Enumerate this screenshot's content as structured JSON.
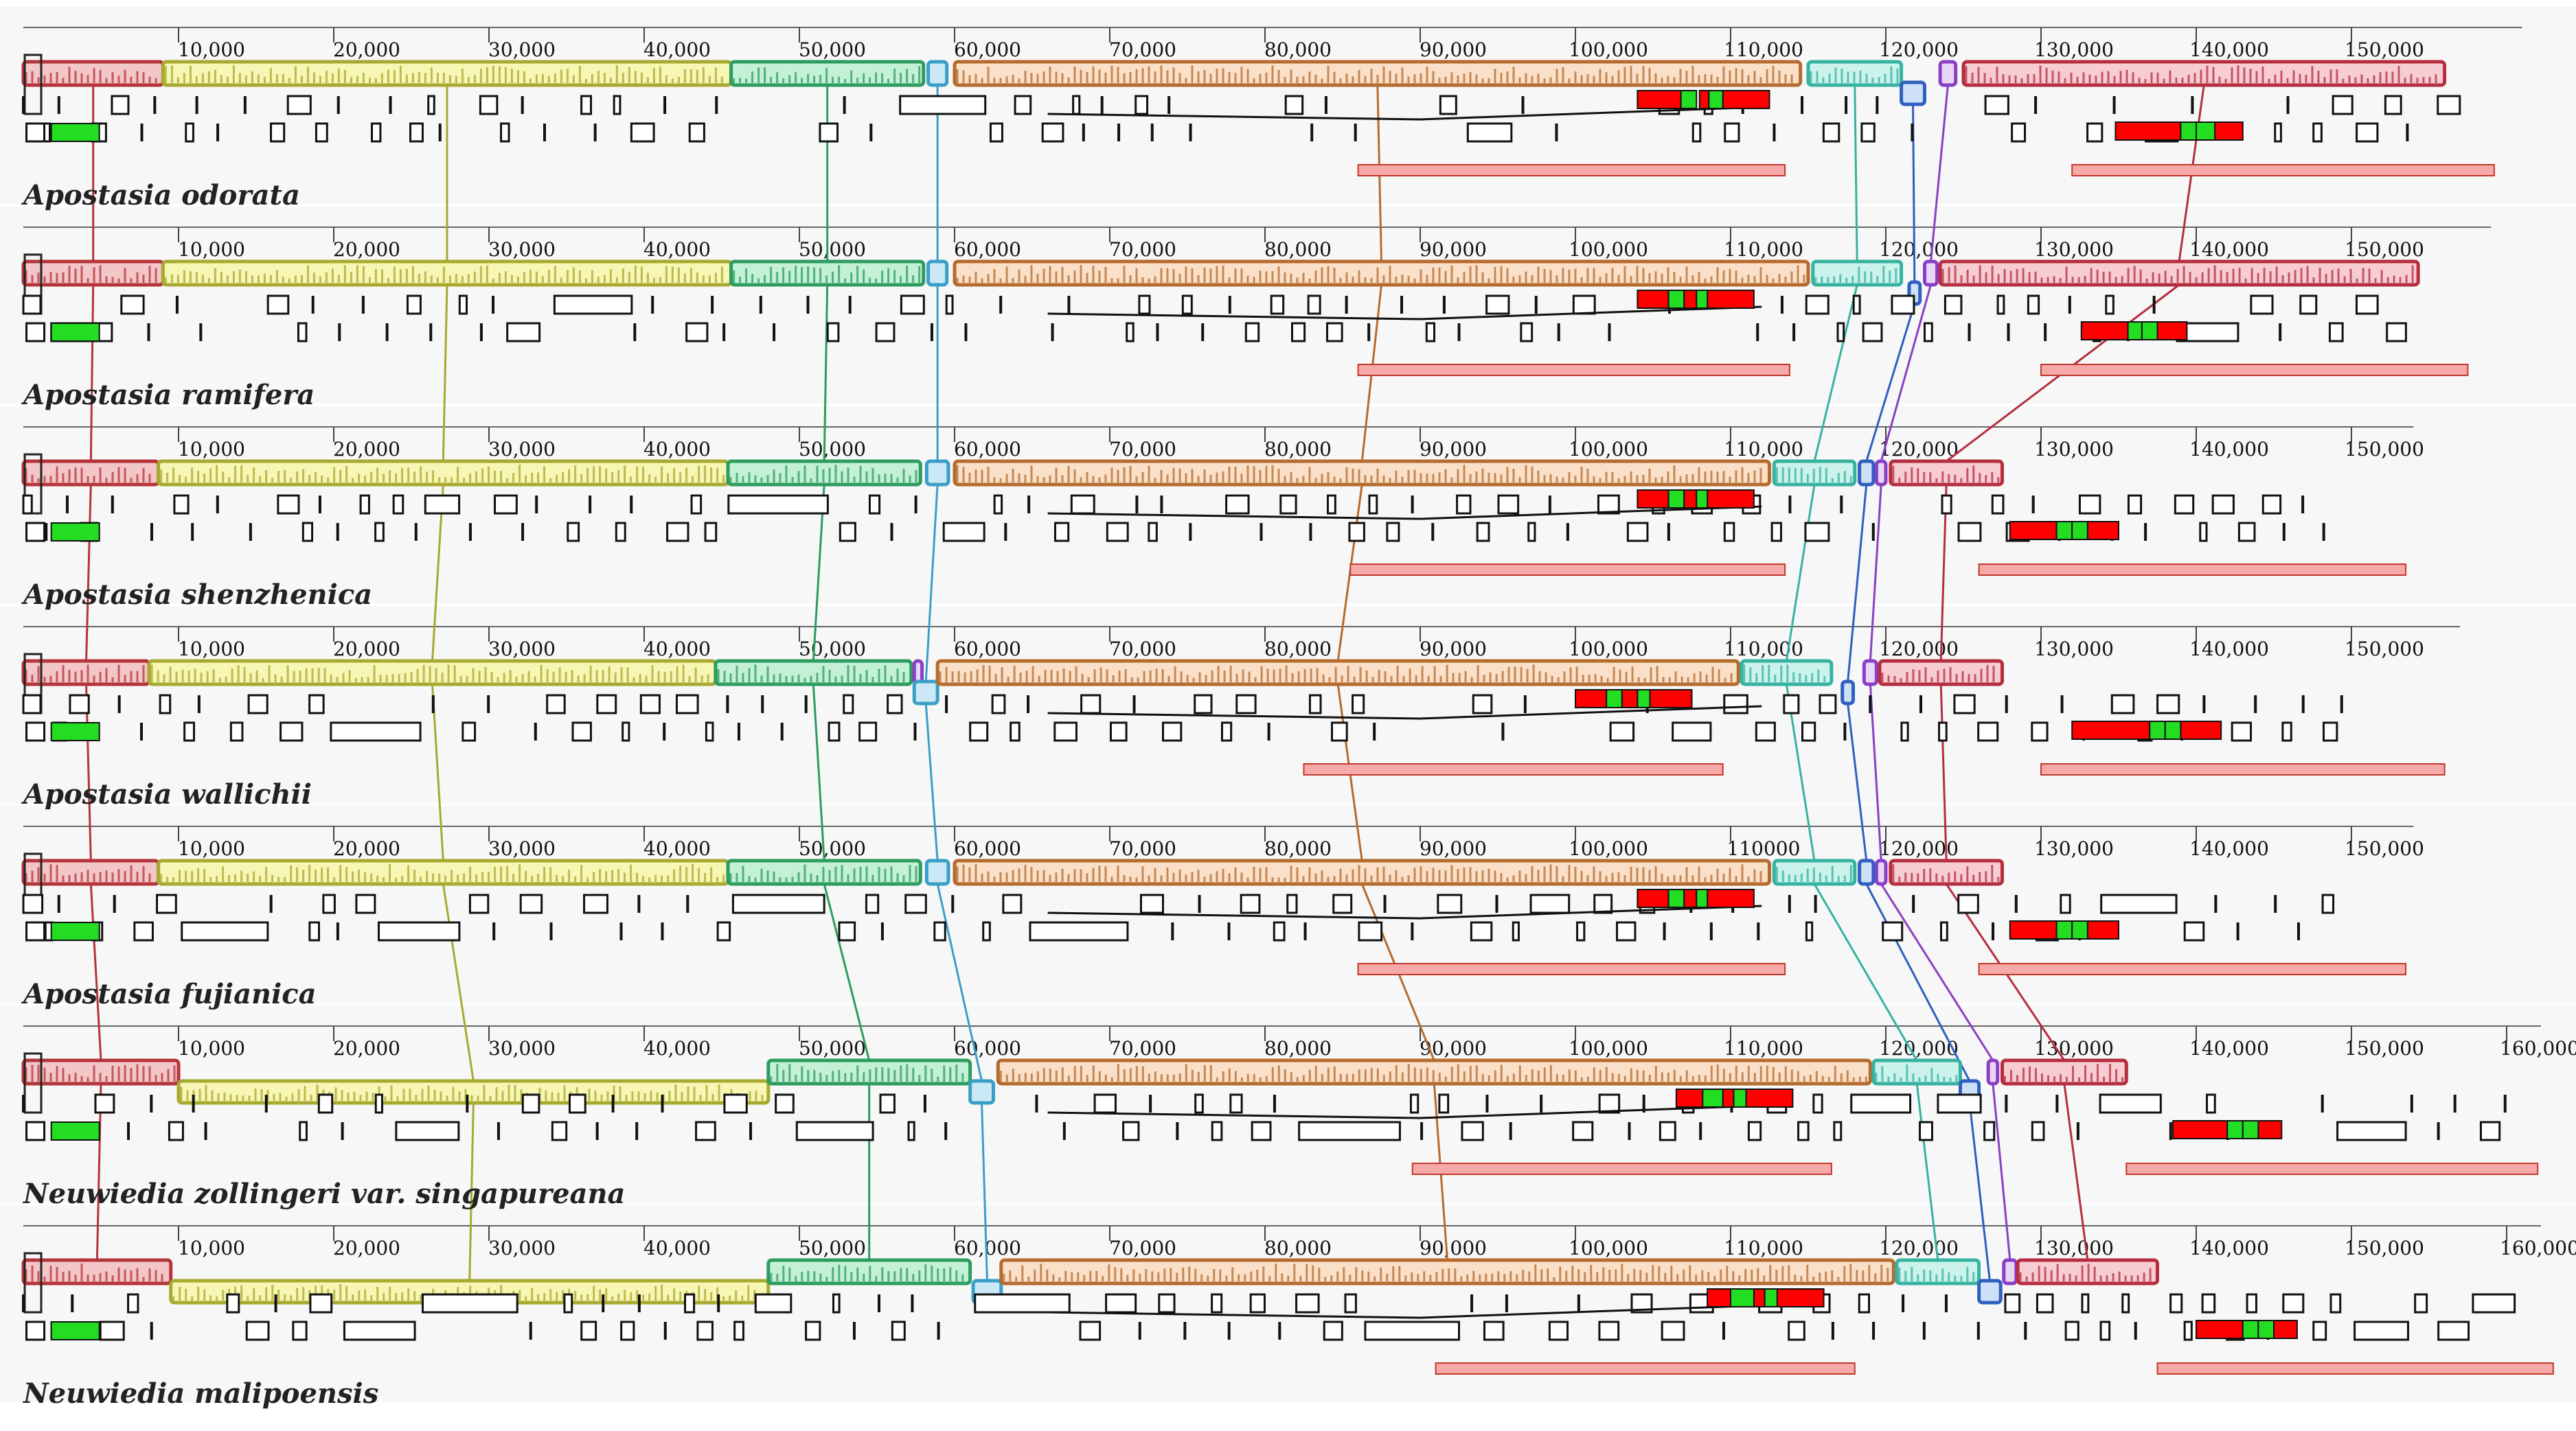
{
  "genome_axis_max_label": "160,000",
  "colors": {
    "lcb1": "#b5343a",
    "lcb1_fill": "#f3c6c8",
    "lcb2": "#a7a930",
    "lcb2_fill": "#f7f6b5",
    "lcb3": "#2c9c5f",
    "lcb3_fill": "#c4f0d5",
    "lcb4": "#2f5fbf",
    "lcb4_fill": "#cde0f7",
    "lcb5": "#3a9fc7",
    "lcb5_fill": "#cbe9f5",
    "lcb6": "#b56b2d",
    "lcb6_fill": "#fbe0c9",
    "lcb7": "#36b3a0",
    "lcb7_fill": "#ccf2ec",
    "lcb8": "#8a3fc4",
    "lcb8_fill": "#e8d6f7",
    "lcb9": "#b52e40",
    "lcb9_fill": "#f7cdd3",
    "gene_red": "#ff0000",
    "gene_green": "#22dd22",
    "ir_bar": "#f6a9a9",
    "panel_bg": "#f7f7f7"
  },
  "tracks": [
    {
      "name": "Apostasia odorata",
      "ticks": [
        "10,000",
        "20,000",
        "30,000",
        "40,000",
        "50,000",
        "60,000",
        "70,000",
        "80,000",
        "90,000",
        "100,000",
        "110,000",
        "120,000",
        "130,000",
        "140,000",
        "150,000"
      ],
      "length_kb": 157,
      "blocks": [
        [
          0,
          9,
          1,
          0
        ],
        [
          9,
          45.6,
          2,
          0
        ],
        [
          45.6,
          58,
          3,
          0
        ],
        [
          58.3,
          59.5,
          5,
          0
        ],
        [
          60,
          114.5,
          6,
          0
        ],
        [
          115,
          121,
          7,
          0
        ],
        [
          121,
          122.5,
          4,
          1
        ],
        [
          123.5,
          124.5,
          8,
          0
        ],
        [
          125,
          156,
          9,
          0
        ]
      ],
      "genes_red": [
        [
          104,
          106.8
        ],
        [
          108,
          108.6
        ],
        [
          109.5,
          112.5
        ]
      ],
      "genes_green": [
        [
          106.8,
          107.8
        ],
        [
          108.6,
          109.5
        ]
      ],
      "ir": [
        [
          86,
          113.5
        ],
        [
          132,
          159.2
        ]
      ],
      "ir_genes_red": [
        [
          134.8,
          139
        ],
        [
          141.2,
          143
        ]
      ],
      "ir_genes_green": [
        [
          139,
          140
        ],
        [
          140,
          141.2
        ]
      ]
    },
    {
      "name": "Apostasia ramifera",
      "ticks": [
        "10,000",
        "20,000",
        "30,000",
        "40,000",
        "50,000",
        "60,000",
        "70,000",
        "80,000",
        "90,000",
        "100,000",
        "110,000",
        "120,000",
        "130,000",
        "140,000",
        "150,000"
      ],
      "length_kb": 155,
      "blocks": [
        [
          0,
          9,
          1,
          0
        ],
        [
          9,
          45.6,
          2,
          0
        ],
        [
          45.6,
          58,
          3,
          0
        ],
        [
          58.3,
          59.5,
          5,
          0
        ],
        [
          60,
          115,
          6,
          0
        ],
        [
          115.3,
          121,
          7,
          0
        ],
        [
          121.5,
          122.2,
          4,
          1
        ],
        [
          122.5,
          123.3,
          8,
          0
        ],
        [
          123.5,
          154.3,
          9,
          0
        ]
      ],
      "genes_red": [
        [
          104,
          106
        ],
        [
          107,
          107.8
        ],
        [
          108.5,
          111.5
        ]
      ],
      "genes_green": [
        [
          106,
          107
        ],
        [
          107.8,
          108.5
        ]
      ],
      "ir": [
        [
          86,
          113.8
        ],
        [
          130,
          157.5
        ]
      ],
      "ir_genes_red": [
        [
          132.6,
          135.6
        ],
        [
          137.5,
          139.4
        ]
      ],
      "ir_genes_green": [
        [
          135.6,
          136.5
        ],
        [
          136.5,
          137.5
        ]
      ]
    },
    {
      "name": "Apostasia shenzhenica",
      "ticks": [
        "10,000",
        "20,000",
        "30,000",
        "40,000",
        "50,000",
        "60,000",
        "70,000",
        "80,000",
        "90,000",
        "100,000",
        "110,000",
        "120,000",
        "130,000",
        "140,000",
        "150,000"
      ],
      "length_kb": 150,
      "blocks": [
        [
          0,
          8.7,
          1,
          0
        ],
        [
          8.7,
          45.4,
          2,
          0
        ],
        [
          45.4,
          57.8,
          3,
          0
        ],
        [
          58.2,
          59.6,
          5,
          0
        ],
        [
          60,
          112.5,
          6,
          0
        ],
        [
          112.8,
          118,
          7,
          0
        ],
        [
          118.3,
          119.2,
          4,
          0
        ],
        [
          119.4,
          120,
          8,
          0
        ],
        [
          120.3,
          127.5,
          9,
          0
        ]
      ],
      "genes_red": [
        [
          104,
          106
        ],
        [
          107,
          107.8
        ],
        [
          108.5,
          111.5
        ]
      ],
      "genes_green": [
        [
          106,
          107
        ],
        [
          107.8,
          108.5
        ]
      ],
      "ir": [
        [
          85.5,
          113.5
        ],
        [
          126,
          153.5
        ]
      ],
      "ir_genes_red": [
        [
          128,
          131
        ],
        [
          133,
          135
        ]
      ],
      "ir_genes_green": [
        [
          131,
          132
        ],
        [
          132,
          133
        ]
      ]
    },
    {
      "name": "Apostasia wallichii",
      "ticks": [
        "10,000",
        "20,000",
        "30,000",
        "40,000",
        "50,000",
        "60,000",
        "70,000",
        "80,000",
        "90,000",
        "100,000",
        "110,000",
        "120,000",
        "130,000",
        "140,000",
        "150,000"
      ],
      "length_kb": 153,
      "blocks": [
        [
          0,
          8.1,
          1,
          0
        ],
        [
          8.1,
          44.6,
          2,
          0
        ],
        [
          44.6,
          57.2,
          3,
          0
        ],
        [
          57.4,
          57.9,
          8,
          0
        ],
        [
          57.4,
          58.9,
          5,
          1
        ],
        [
          58.9,
          110.5,
          6,
          0
        ],
        [
          110.7,
          116.5,
          7,
          0
        ],
        [
          117.2,
          117.9,
          4,
          1
        ],
        [
          118.6,
          119.4,
          8,
          0
        ],
        [
          119.6,
          127.5,
          9,
          0
        ]
      ],
      "genes_red": [
        [
          100,
          102
        ],
        [
          103,
          104
        ],
        [
          104.8,
          107.5
        ]
      ],
      "genes_green": [
        [
          102,
          103
        ],
        [
          104,
          104.8
        ]
      ],
      "ir": [
        [
          82.5,
          109.5
        ],
        [
          130,
          156
        ]
      ],
      "ir_genes_red": [
        [
          132,
          137
        ],
        [
          139,
          141.6
        ]
      ],
      "ir_genes_green": [
        [
          137,
          138
        ],
        [
          138,
          139
        ]
      ]
    },
    {
      "name": "Apostasia fujianica",
      "ticks": [
        "10,000",
        "20,000",
        "30,000",
        "40,000",
        "50,000",
        "60,000",
        "70,000",
        "80,000",
        "90,000",
        "100,000",
        "110000",
        "120,000",
        "130,000",
        "140,000",
        "150,000"
      ],
      "length_kb": 150,
      "blocks": [
        [
          0,
          8.7,
          1,
          0
        ],
        [
          8.7,
          45.4,
          2,
          0
        ],
        [
          45.4,
          57.8,
          3,
          0
        ],
        [
          58.2,
          59.6,
          5,
          0
        ],
        [
          60,
          112.5,
          6,
          0
        ],
        [
          112.8,
          118,
          7,
          0
        ],
        [
          118.3,
          119.2,
          4,
          0
        ],
        [
          119.4,
          120,
          8,
          0
        ],
        [
          120.3,
          127.5,
          9,
          0
        ]
      ],
      "genes_red": [
        [
          104,
          106
        ],
        [
          107,
          107.8
        ],
        [
          108.5,
          111.5
        ]
      ],
      "genes_green": [
        [
          106,
          107
        ],
        [
          107.8,
          108.5
        ]
      ],
      "ir": [
        [
          86,
          113.5
        ],
        [
          126,
          153.5
        ]
      ],
      "ir_genes_red": [
        [
          128,
          131
        ],
        [
          133,
          135
        ]
      ],
      "ir_genes_green": [
        [
          131,
          132
        ],
        [
          132,
          133
        ]
      ]
    },
    {
      "name": "Neuwiedia zollingeri var. singapureana",
      "ticks": [
        "10,000",
        "20,000",
        "30,000",
        "40,000",
        "50,000",
        "60,000",
        "70,000",
        "80,000",
        "90,000",
        "100,000",
        "110,000",
        "120,000",
        "130,000",
        "140,000",
        "150,000",
        "160,000"
      ],
      "length_kb": 161,
      "blocks": [
        [
          0,
          10,
          1,
          0
        ],
        [
          10,
          48,
          2,
          1
        ],
        [
          48,
          61,
          3,
          0
        ],
        [
          61,
          62.5,
          5,
          1
        ],
        [
          62.8,
          119,
          6,
          0
        ],
        [
          119.2,
          124.8,
          7,
          0
        ],
        [
          124.8,
          126,
          4,
          1
        ],
        [
          126.6,
          127.2,
          8,
          0
        ],
        [
          127.5,
          135.5,
          9,
          0
        ]
      ],
      "genes_red": [
        [
          106.5,
          108.2
        ],
        [
          109.5,
          110.2
        ],
        [
          111,
          114
        ]
      ],
      "genes_green": [
        [
          108.2,
          109.5
        ],
        [
          110.2,
          111
        ]
      ],
      "ir": [
        [
          89.5,
          116.5
        ],
        [
          135.5,
          162
        ]
      ],
      "ir_genes_red": [
        [
          138.5,
          142
        ],
        [
          144,
          145.5
        ]
      ],
      "ir_genes_green": [
        [
          142,
          143
        ],
        [
          143,
          144
        ]
      ]
    },
    {
      "name": "Neuwiedia malipoensis",
      "ticks": [
        "10,000",
        "20,000",
        "30,000",
        "40,000",
        "50,000",
        "60,000",
        "70,000",
        "80,000",
        "90,000",
        "100,000",
        "110,000",
        "120,000",
        "130,000",
        "140,000",
        "150,000",
        "160,000"
      ],
      "length_kb": 161,
      "blocks": [
        [
          0,
          9.5,
          1,
          0
        ],
        [
          9.5,
          48,
          2,
          1
        ],
        [
          48,
          61,
          3,
          0
        ],
        [
          61.2,
          63,
          5,
          1
        ],
        [
          63,
          120.5,
          6,
          0
        ],
        [
          120.7,
          126,
          7,
          0
        ],
        [
          126,
          127.4,
          4,
          1
        ],
        [
          127.6,
          128.4,
          8,
          0
        ],
        [
          128.5,
          137.5,
          9,
          0
        ]
      ],
      "genes_red": [
        [
          108.5,
          110
        ],
        [
          111.5,
          112.2
        ],
        [
          113,
          116
        ]
      ],
      "genes_green": [
        [
          110,
          111.5
        ],
        [
          112.2,
          113
        ]
      ],
      "ir": [
        [
          91,
          118
        ],
        [
          137.5,
          163
        ]
      ],
      "ir_genes_red": [
        [
          140,
          143
        ],
        [
          145,
          146.5
        ]
      ],
      "ir_genes_green": [
        [
          143,
          144
        ],
        [
          144,
          145
        ]
      ]
    }
  ]
}
